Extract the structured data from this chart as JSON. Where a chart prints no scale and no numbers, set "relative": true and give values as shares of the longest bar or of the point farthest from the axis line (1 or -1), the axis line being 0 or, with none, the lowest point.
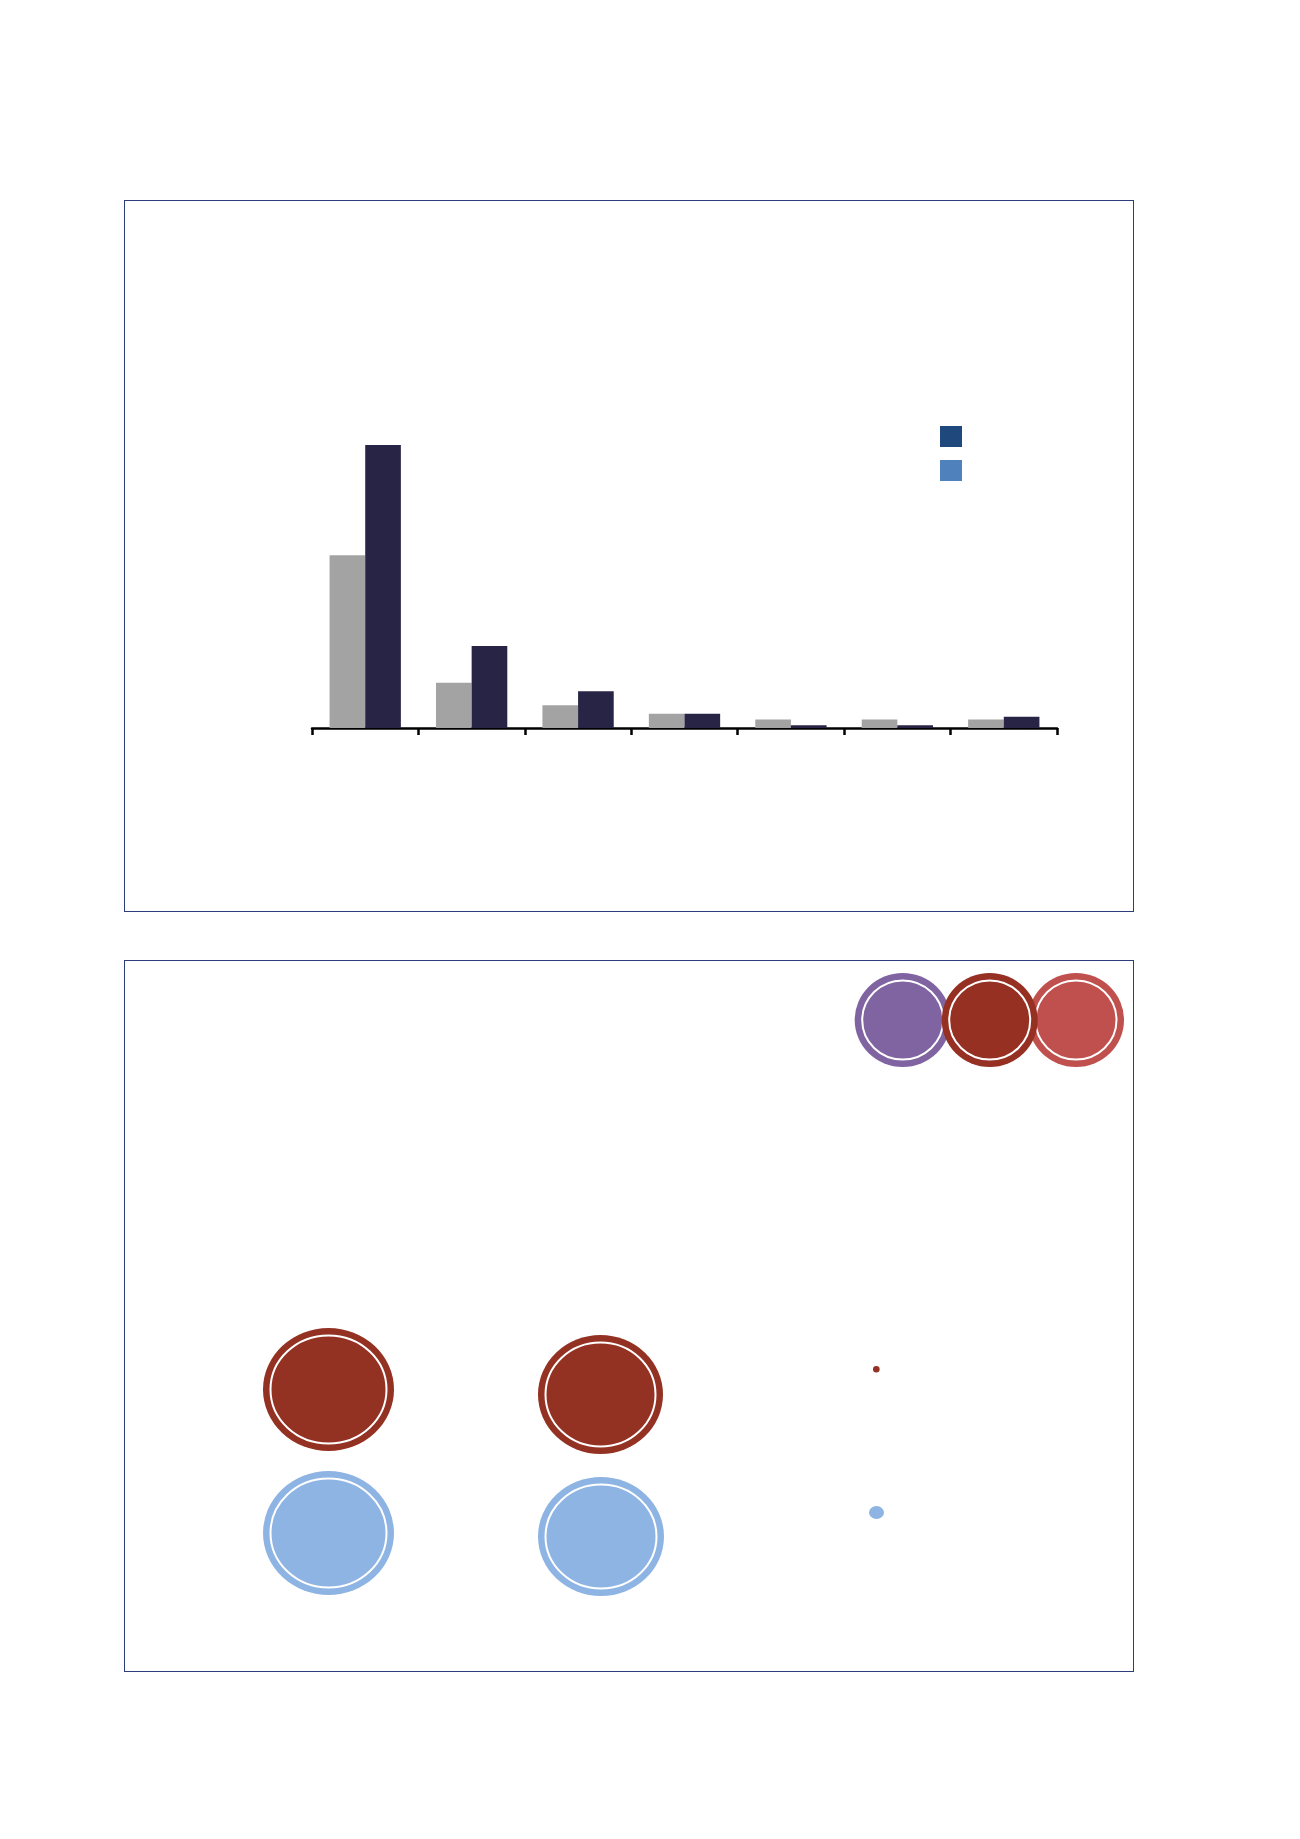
{
  "chart_data": {
    "type": "bar",
    "relative": true,
    "categories": [
      null,
      null,
      null,
      null,
      null,
      null,
      null
    ],
    "series": [
      {
        "color": "#a3a3a3",
        "values": [
          0.61,
          0.16,
          0.08,
          0.05,
          0.03,
          0.03,
          0.03
        ]
      },
      {
        "color": "#282445",
        "values": [
          1,
          0.29,
          0.13,
          0.05,
          0.01,
          0.01,
          0.04
        ]
      }
    ]
  }
}
